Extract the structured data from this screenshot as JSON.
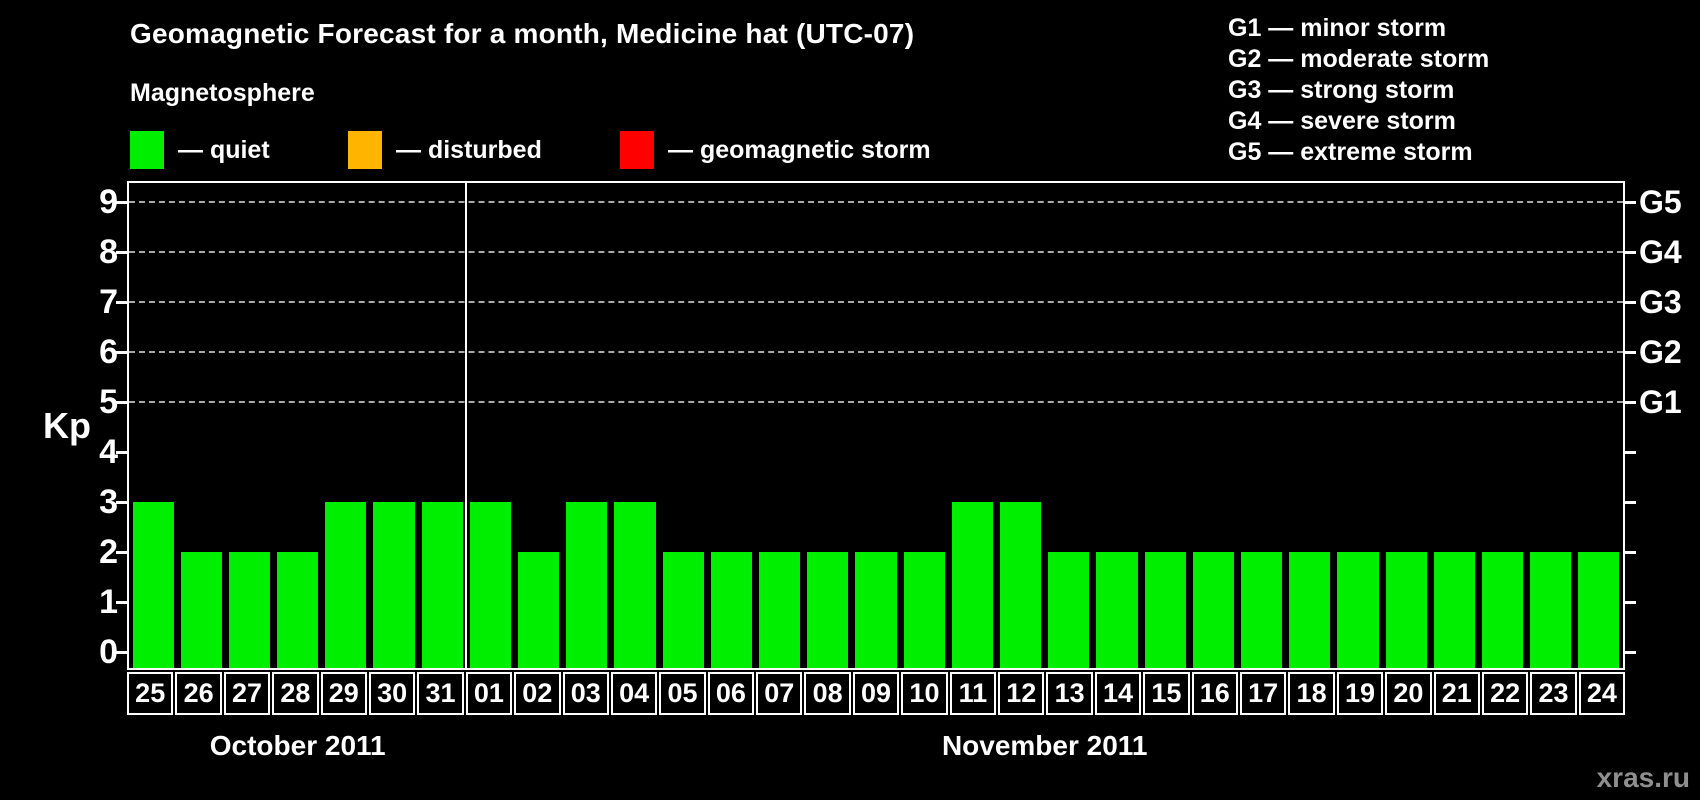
{
  "separator": "—",
  "magnetosphere": {
    "label": "Magnetosphere",
    "legend": [
      {
        "label": "quiet",
        "color": "#00EE00"
      },
      {
        "label": "disturbed",
        "color": "#FFB400"
      },
      {
        "label": "geomagnetic storm",
        "color": "#FF0000"
      }
    ]
  },
  "storm_scale": {
    "lines": [
      {
        "code": "G1",
        "label": "minor storm",
        "kp": 5
      },
      {
        "code": "G2",
        "label": "moderate storm",
        "kp": 6
      },
      {
        "code": "G3",
        "label": "strong storm",
        "kp": 7
      },
      {
        "code": "G4",
        "label": "severe storm",
        "kp": 8
      },
      {
        "code": "G5",
        "label": "extreme storm",
        "kp": 9
      }
    ]
  },
  "watermark": "xras.ru",
  "chart_data": {
    "type": "bar",
    "title": "Geomagnetic Forecast for a month, Medicine hat (UTC-07)",
    "ylabel": "Kp",
    "ylim": [
      0,
      9
    ],
    "yticks": [
      0,
      1,
      2,
      3,
      4,
      5,
      6,
      7,
      8,
      9
    ],
    "gridlines_at": [
      5,
      6,
      7,
      8,
      9
    ],
    "grid": "dashed",
    "background": "#000000",
    "axis_color": "#FFFFFF",
    "bar_color": "#00EE00",
    "groups": [
      {
        "month_label": "October 2011",
        "days": [
          "25",
          "26",
          "27",
          "28",
          "29",
          "30",
          "31"
        ],
        "kp_values": [
          3,
          2,
          2,
          2,
          3,
          3,
          3
        ]
      },
      {
        "month_label": "November 2011",
        "days": [
          "01",
          "02",
          "03",
          "04",
          "05",
          "06",
          "07",
          "08",
          "09",
          "10",
          "11",
          "12",
          "13",
          "14",
          "15",
          "16",
          "17",
          "18",
          "19",
          "20",
          "21",
          "22",
          "23",
          "24"
        ],
        "kp_values": [
          3,
          2,
          3,
          3,
          2,
          2,
          2,
          2,
          2,
          2,
          3,
          3,
          2,
          2,
          2,
          2,
          2,
          2,
          2,
          2,
          2,
          2,
          2,
          2
        ]
      }
    ]
  }
}
